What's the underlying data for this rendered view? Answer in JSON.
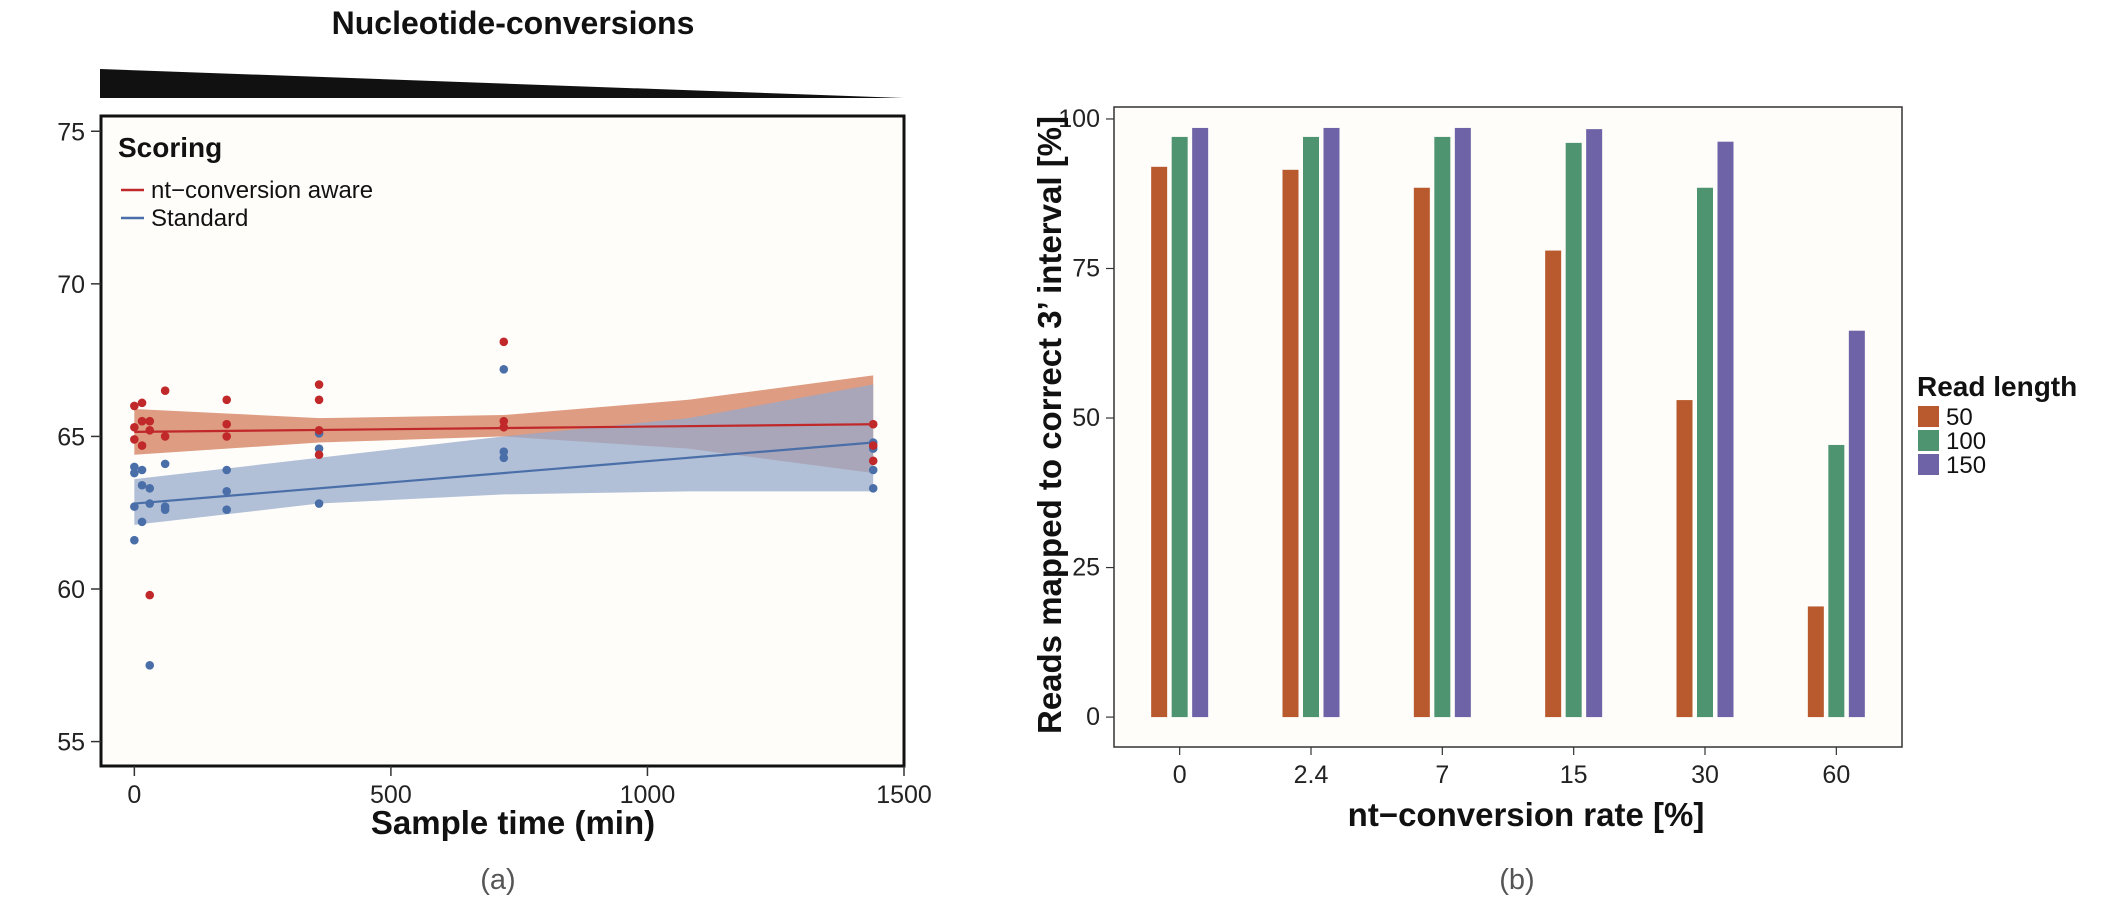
{
  "figure": {
    "colors": {
      "aware": "#c0282a",
      "standard": "#4a6fa8",
      "aware_band": "#d88b6c",
      "standard_band": "#97a9cb",
      "rl50": "#b85a2e",
      "rl100": "#4f9470",
      "rl150": "#6e63a6",
      "panel_bg": "#fefdfa",
      "wedge": "#111111"
    }
  },
  "chart_data": [
    {
      "type": "scatter",
      "banner": "Nucleotide-conversions",
      "caption": "(a)",
      "xlabel": "Sample time (min)",
      "ylabel": "",
      "xlim": [
        -65,
        1500
      ],
      "ylim": [
        54.2,
        75.5
      ],
      "xticks": [
        0,
        500,
        1000,
        1500
      ],
      "yticks": [
        55,
        60,
        65,
        70,
        75
      ],
      "legend": {
        "title": "Scoring",
        "position": "top-left",
        "entries": [
          "nt−conversion aware",
          "Standard"
        ]
      },
      "grid": false,
      "series": [
        {
          "name": "nt−conversion aware",
          "points": [
            [
              0,
              66.0
            ],
            [
              0,
              65.3
            ],
            [
              0,
              64.9
            ],
            [
              15,
              66.1
            ],
            [
              15,
              65.5
            ],
            [
              15,
              64.7
            ],
            [
              30,
              65.5
            ],
            [
              30,
              65.2
            ],
            [
              30,
              59.8
            ],
            [
              60,
              66.5
            ],
            [
              60,
              65.0
            ],
            [
              180,
              66.2
            ],
            [
              180,
              65.4
            ],
            [
              180,
              65.0
            ],
            [
              360,
              66.7
            ],
            [
              360,
              66.2
            ],
            [
              360,
              65.2
            ],
            [
              360,
              64.4
            ],
            [
              720,
              68.1
            ],
            [
              720,
              65.5
            ],
            [
              720,
              65.3
            ],
            [
              1440,
              65.4
            ],
            [
              1440,
              64.7
            ],
            [
              1440,
              64.2
            ]
          ],
          "fit": {
            "x": [
              0,
              1440
            ],
            "y": [
              65.15,
              65.4
            ]
          },
          "band": {
            "x": [
              0,
              360,
              720,
              1080,
              1440
            ],
            "upper": [
              65.9,
              65.6,
              65.7,
              66.2,
              67.0
            ],
            "lower": [
              64.4,
              64.8,
              65.0,
              64.6,
              63.8
            ]
          }
        },
        {
          "name": "Standard",
          "points": [
            [
              0,
              64.0
            ],
            [
              0,
              63.8
            ],
            [
              0,
              62.7
            ],
            [
              0,
              61.6
            ],
            [
              15,
              63.9
            ],
            [
              15,
              63.4
            ],
            [
              15,
              62.2
            ],
            [
              30,
              63.3
            ],
            [
              30,
              62.8
            ],
            [
              30,
              57.5
            ],
            [
              60,
              64.1
            ],
            [
              60,
              62.7
            ],
            [
              60,
              62.6
            ],
            [
              180,
              63.9
            ],
            [
              180,
              63.2
            ],
            [
              180,
              62.6
            ],
            [
              360,
              65.1
            ],
            [
              360,
              64.6
            ],
            [
              360,
              62.8
            ],
            [
              720,
              67.2
            ],
            [
              720,
              64.5
            ],
            [
              720,
              64.3
            ],
            [
              1440,
              64.8
            ],
            [
              1440,
              64.6
            ],
            [
              1440,
              63.9
            ],
            [
              1440,
              63.3
            ]
          ],
          "fit": {
            "x": [
              0,
              1440
            ],
            "y": [
              62.8,
              64.8
            ]
          },
          "band": {
            "x": [
              0,
              360,
              720,
              1080,
              1440
            ],
            "upper": [
              63.6,
              64.3,
              65.0,
              65.6,
              66.7
            ],
            "lower": [
              62.1,
              62.8,
              63.1,
              63.2,
              63.2
            ]
          }
        }
      ]
    },
    {
      "type": "bar",
      "caption": "(b)",
      "xlabel": "nt−conversion rate [%]",
      "ylabel": "Reads mapped to correct 3’ interval [%]",
      "categories": [
        "0",
        "2.4",
        "7",
        "15",
        "30",
        "60"
      ],
      "ylim": [
        -5,
        102
      ],
      "yticks": [
        0,
        25,
        50,
        75,
        100
      ],
      "grid": false,
      "legend": {
        "title": "Read length",
        "position": "right"
      },
      "series": [
        {
          "name": "50",
          "values": [
            92,
            91.5,
            88.5,
            78,
            53,
            18.5
          ]
        },
        {
          "name": "100",
          "values": [
            97,
            97,
            97,
            96,
            88.5,
            45.5
          ]
        },
        {
          "name": "150",
          "values": [
            98.5,
            98.5,
            98.5,
            98.3,
            96.2,
            64.6
          ]
        }
      ]
    }
  ]
}
